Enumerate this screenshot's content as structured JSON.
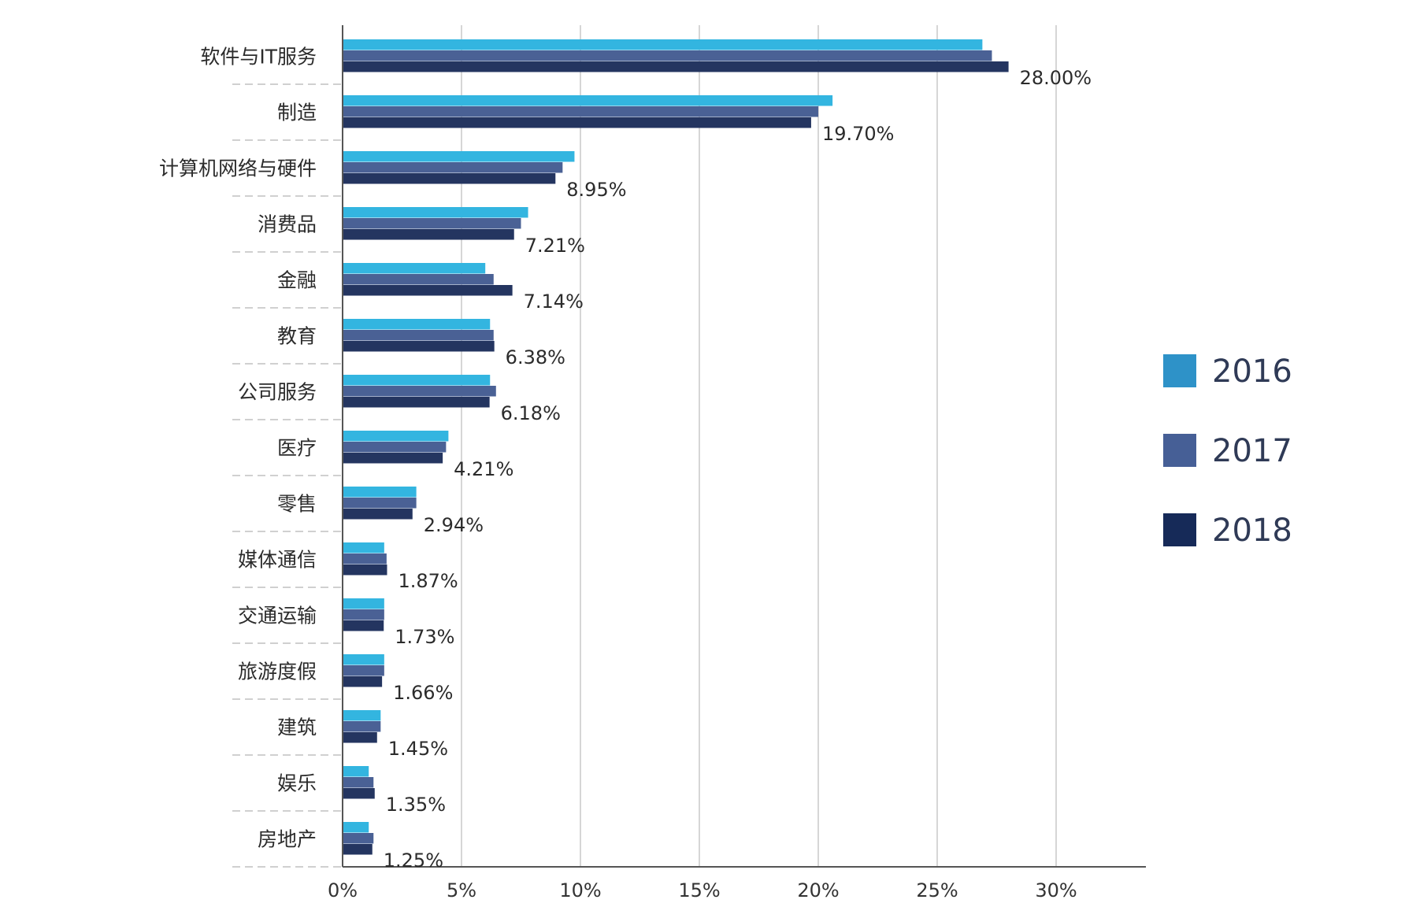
{
  "chart_data": {
    "type": "bar",
    "orientation": "horizontal",
    "categories": [
      "软件与IT服务",
      "制造",
      "计算机网络与硬件",
      "消费品",
      "金融",
      "教育",
      "公司服务",
      "医疗",
      "零售",
      "媒体通信",
      "交通运输",
      "旅游度假",
      "建筑",
      "娱乐",
      "房地产"
    ],
    "series": [
      {
        "name": "2016",
        "color": "#33b5e0",
        "values": [
          26.9,
          20.6,
          9.75,
          7.8,
          6.0,
          6.2,
          6.2,
          4.45,
          3.1,
          1.75,
          1.75,
          1.75,
          1.6,
          1.1,
          1.1
        ]
      },
      {
        "name": "2017",
        "color": "#4a6195",
        "values": [
          27.3,
          20.0,
          9.25,
          7.5,
          6.35,
          6.35,
          6.45,
          4.35,
          3.1,
          1.85,
          1.75,
          1.75,
          1.6,
          1.3,
          1.3
        ]
      },
      {
        "name": "2018",
        "color": "#243560",
        "values": [
          28.0,
          19.7,
          8.95,
          7.21,
          7.14,
          6.38,
          6.18,
          4.21,
          2.94,
          1.87,
          1.73,
          1.66,
          1.45,
          1.35,
          1.25
        ]
      }
    ],
    "data_labels": [
      "28.00%",
      "19.70%",
      "8.95%",
      "7.21%",
      "7.14%",
      "6.38%",
      "6.18%",
      "4.21%",
      "2.94%",
      "1.87%",
      "1.73%",
      "1.66%",
      "1.45%",
      "1.35%",
      "1.25%"
    ],
    "xlim": [
      0,
      35
    ],
    "xticks": [
      0,
      5,
      10,
      15,
      20,
      25,
      30
    ],
    "xtick_labels": [
      "0%",
      "5%",
      "10%",
      "15%",
      "20%",
      "25%",
      "30%"
    ],
    "grid": "vertical",
    "legend": {
      "position": "right",
      "items": [
        {
          "label": "2016",
          "color": "#2e92c8"
        },
        {
          "label": "2017",
          "color": "#465f96"
        },
        {
          "label": "2018",
          "color": "#162a58"
        }
      ]
    },
    "title": "",
    "xlabel": "",
    "ylabel": ""
  }
}
